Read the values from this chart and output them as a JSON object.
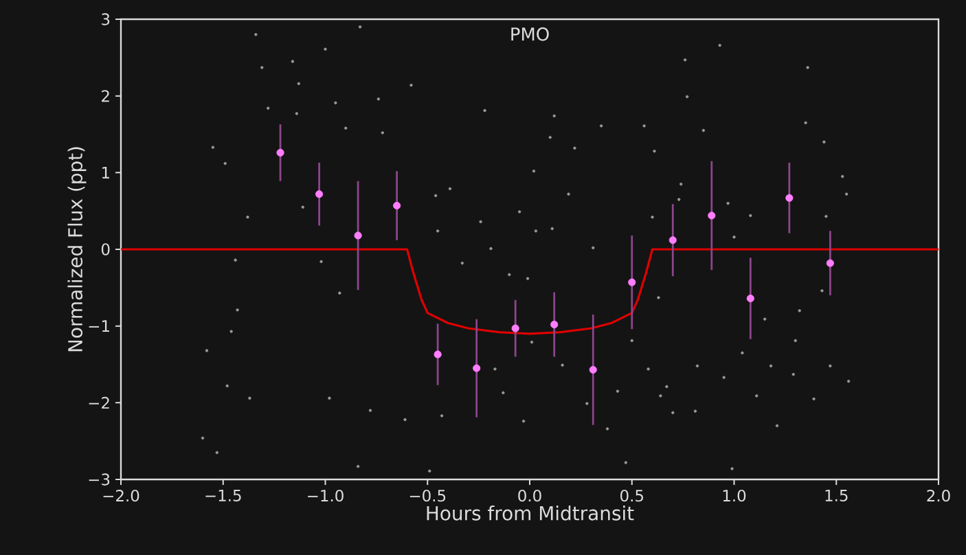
{
  "chart_data": {
    "type": "scatter",
    "title": "PMO",
    "xlabel": "Hours from Midtransit",
    "ylabel": "Normalized Flux (ppt)",
    "xlim": [
      -2,
      2
    ],
    "ylim": [
      -3,
      3
    ],
    "xticks": [
      {
        "value": -2,
        "label": "−2.0"
      },
      {
        "value": -1.5,
        "label": "−1.5"
      },
      {
        "value": -1,
        "label": "−1.0"
      },
      {
        "value": -0.5,
        "label": "−0.5"
      },
      {
        "value": 0,
        "label": "0.0"
      },
      {
        "value": 0.5,
        "label": "0.5"
      },
      {
        "value": 1,
        "label": "1.0"
      },
      {
        "value": 1.5,
        "label": "1.5"
      },
      {
        "value": 2,
        "label": "2.0"
      }
    ],
    "yticks": [
      {
        "value": -3,
        "label": "−3"
      },
      {
        "value": -2,
        "label": "−2"
      },
      {
        "value": -1,
        "label": "−1"
      },
      0,
      1,
      2,
      3
    ],
    "series": [
      {
        "marker": "circle",
        "color": "#9a9a9a",
        "x": [
          -1.34,
          -0.83,
          -1.31,
          -1.16,
          -1.0,
          -1.13,
          -1.28,
          -1.14,
          -0.95,
          -0.74,
          -0.58,
          -0.9,
          -0.72,
          -1.55,
          -1.49,
          -1.38,
          -1.11,
          -1.44,
          -1.02,
          -0.93,
          -1.43,
          -1.46,
          -1.58,
          -1.48,
          -1.37,
          -1.6,
          -1.53,
          -0.98,
          -0.78,
          -0.61,
          -0.43,
          -0.84,
          -0.49,
          -0.33,
          -0.46,
          -0.39,
          -0.45,
          -0.24,
          -0.19,
          -0.22,
          -0.05,
          0.02,
          -0.1,
          -0.13,
          -0.03,
          -0.17,
          0.93,
          0.76,
          1.36,
          0.77,
          0.12,
          0.35,
          0.56,
          0.1,
          1.35,
          1.44,
          0.85,
          0.22,
          0.61,
          0.19,
          1.53,
          1.55,
          0.74,
          0.97,
          0.03,
          0.11,
          0.31,
          1.0,
          1.08,
          1.45,
          -0.01,
          0.63,
          1.32,
          1.15,
          1.43,
          1.3,
          1.04,
          1.18,
          0.82,
          0.58,
          1.29,
          1.47,
          1.56,
          0.95,
          0.67,
          0.64,
          0.43,
          0.28,
          1.11,
          1.39,
          0.7,
          0.81,
          0.38,
          1.21,
          0.47,
          0.99,
          0.01,
          0.16,
          0.5,
          0.6,
          0.73
        ],
        "values": [
          2.8,
          2.9,
          2.37,
          2.45,
          2.61,
          2.16,
          1.84,
          1.77,
          1.91,
          1.96,
          2.14,
          1.58,
          1.52,
          1.33,
          1.12,
          0.42,
          0.55,
          -0.14,
          -0.16,
          -0.57,
          -0.79,
          -1.07,
          -1.32,
          -1.78,
          -1.94,
          -2.46,
          -2.65,
          -1.94,
          -2.1,
          -2.22,
          -2.17,
          -2.83,
          -2.89,
          -0.18,
          0.7,
          0.79,
          0.24,
          0.36,
          0.01,
          1.81,
          0.49,
          1.02,
          -0.33,
          -1.87,
          -2.24,
          -1.56,
          2.66,
          2.47,
          2.37,
          1.99,
          1.74,
          1.61,
          1.61,
          1.46,
          1.65,
          1.4,
          1.55,
          1.32,
          1.28,
          0.72,
          0.95,
          0.72,
          0.85,
          0.6,
          0.24,
          0.27,
          0.02,
          0.16,
          0.44,
          0.43,
          -0.38,
          -0.63,
          -0.8,
          -0.91,
          -0.54,
          -1.19,
          -1.35,
          -1.52,
          -1.52,
          -1.56,
          -1.63,
          -1.52,
          -1.72,
          -1.67,
          -1.79,
          -1.91,
          -1.85,
          -2.01,
          -1.91,
          -1.95,
          -2.13,
          -2.11,
          -2.34,
          -2.3,
          -2.78,
          -2.86,
          -1.21,
          -1.51,
          -1.19,
          0.42,
          0.65
        ]
      },
      {
        "marker": "circle",
        "color": "#ff7dff",
        "x": [
          -1.22,
          -1.03,
          -0.84,
          -0.65,
          -0.45,
          -0.26,
          -0.07,
          0.12,
          0.31,
          0.5,
          0.7,
          0.89,
          1.08,
          1.27,
          1.47
        ],
        "values": [
          1.26,
          0.72,
          0.18,
          0.57,
          -1.37,
          -1.55,
          -1.03,
          -0.98,
          -1.57,
          -0.43,
          0.12,
          0.44,
          -0.64,
          0.67,
          -0.18
        ],
        "errors": [
          0.37,
          0.41,
          0.71,
          0.45,
          0.4,
          0.64,
          0.37,
          0.42,
          0.72,
          0.61,
          0.47,
          0.71,
          0.53,
          0.46,
          0.42
        ]
      },
      {
        "type": "line",
        "color": "#e00000",
        "x": [
          -2,
          -0.6,
          -0.57,
          -0.53,
          -0.5,
          -0.4,
          -0.3,
          -0.15,
          0,
          0.15,
          0.3,
          0.4,
          0.5,
          0.53,
          0.57,
          0.6,
          2
        ],
        "values": [
          0,
          0,
          -0.3,
          -0.65,
          -0.83,
          -0.96,
          -1.03,
          -1.08,
          -1.1,
          -1.08,
          -1.03,
          -0.96,
          -0.83,
          -0.65,
          -0.3,
          0,
          0
        ]
      }
    ]
  }
}
